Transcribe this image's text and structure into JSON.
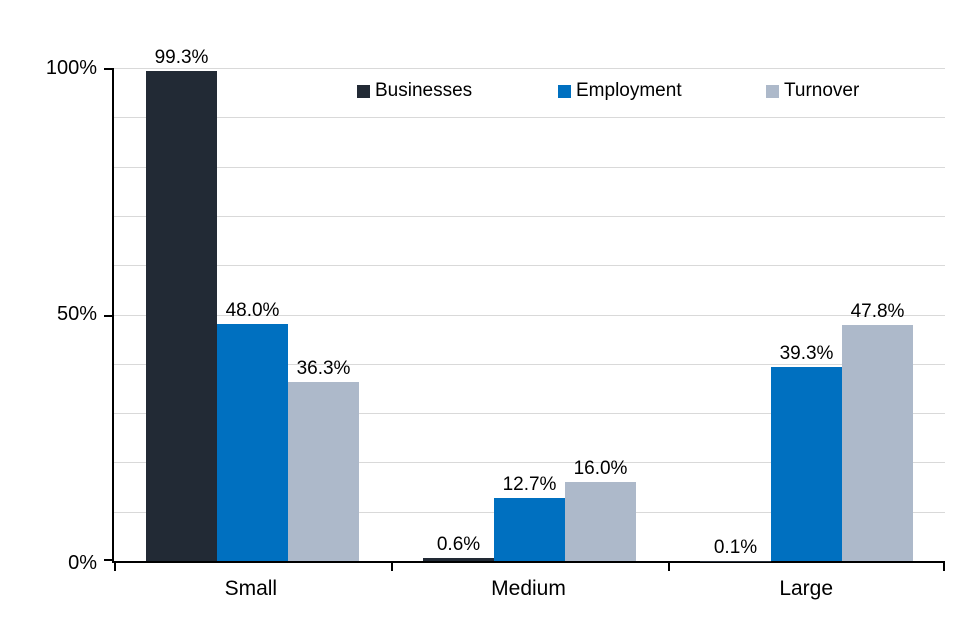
{
  "chart_data": {
    "type": "bar",
    "title": "",
    "xlabel": "",
    "ylabel": "",
    "categories": [
      "Small",
      "Medium",
      "Large"
    ],
    "series": [
      {
        "name": "Businesses",
        "color": "#222A35",
        "values": [
          99.3,
          0.6,
          0.1
        ],
        "labels": [
          "99.3%",
          "0.6%",
          "0.1%"
        ]
      },
      {
        "name": "Employment",
        "color": "#0070C0",
        "values": [
          48.0,
          12.7,
          39.3
        ],
        "labels": [
          "48.0%",
          "12.7%",
          "39.3%"
        ]
      },
      {
        "name": "Turnover",
        "color": "#ADB9CA",
        "values": [
          36.3,
          16.0,
          47.8
        ],
        "labels": [
          "36.3%",
          "16.0%",
          "47.8%"
        ]
      }
    ],
    "y_axis": {
      "min": 0,
      "max": 100,
      "gridline_step": 10,
      "ticks": [
        {
          "label": "0%",
          "value": 0
        },
        {
          "label": "50%",
          "value": 50
        },
        {
          "label": "100%",
          "value": 100
        }
      ]
    },
    "legend_position": "top",
    "grid": "horizontal"
  },
  "style": {
    "background": "#FFFFFF",
    "gridline_color": "#D9D9D9",
    "axis_color": "#000000",
    "text_color": "#000000"
  }
}
